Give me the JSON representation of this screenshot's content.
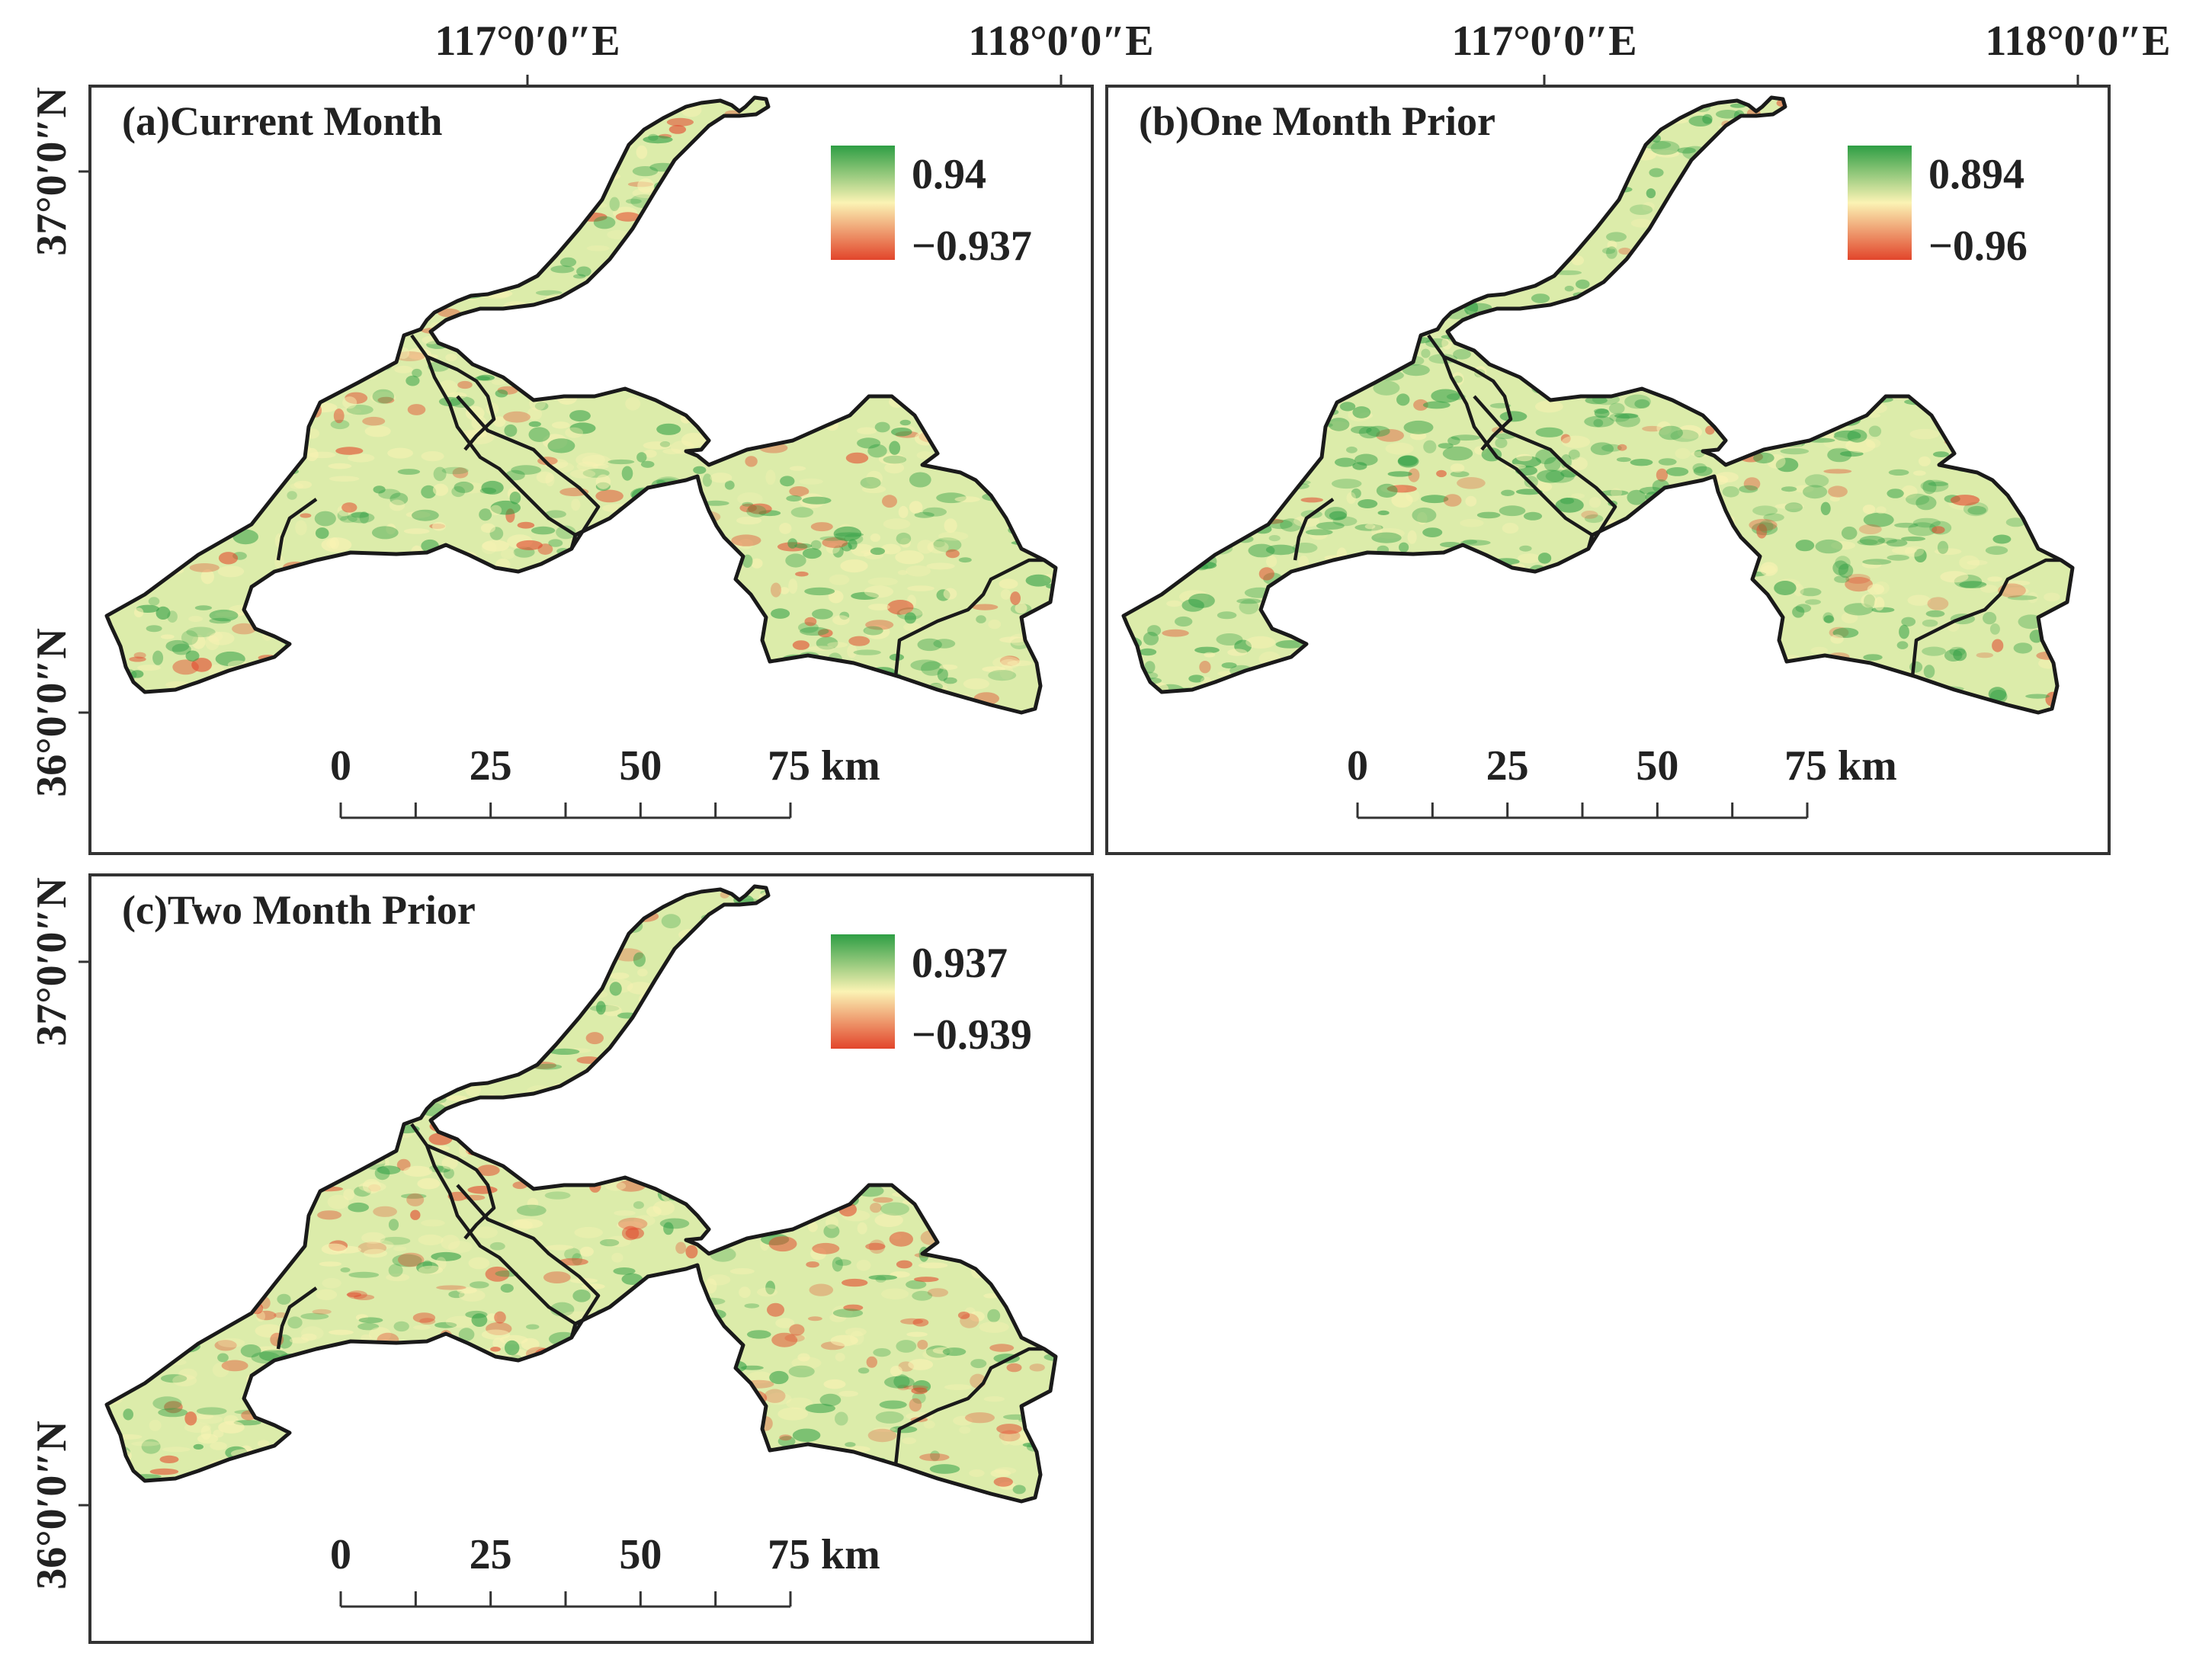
{
  "axes": {
    "top_labels": [
      "117°0′0″E",
      "118°0′0″E"
    ],
    "left_labels": [
      "37°0′0″N",
      "36°0′0″N"
    ]
  },
  "scalebar": {
    "labels": [
      "0",
      "25",
      "50",
      "75 km"
    ]
  },
  "panels": [
    {
      "id": "a",
      "title": "(a)Current Month",
      "legend_max": "0.94",
      "legend_min": "−0.937",
      "scheme": {
        "green": 0.4,
        "red": 0.18,
        "seed": 11
      }
    },
    {
      "id": "b",
      "title": "(b)One Month Prior",
      "legend_max": "0.894",
      "legend_min": "−0.96",
      "scheme": {
        "green": 0.6,
        "red": 0.1,
        "seed": 23
      }
    },
    {
      "id": "c",
      "title": "(c)Two Month Prior",
      "legend_max": "0.937",
      "legend_min": "−0.939",
      "scheme": {
        "green": 0.32,
        "red": 0.26,
        "seed": 37
      }
    }
  ],
  "colors": {
    "green": "#2e9e44",
    "yellow": "#fbf3b4",
    "red": "#e2452b"
  }
}
